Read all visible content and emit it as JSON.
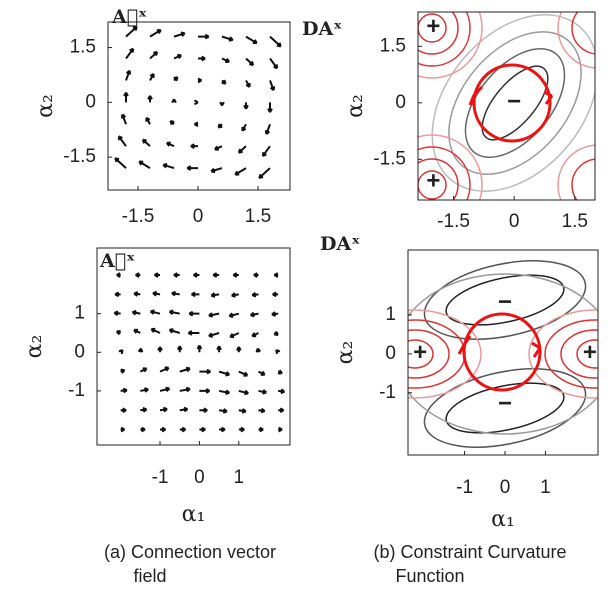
{
  "chart_data": [
    {
      "type": "quiver",
      "title": "A⃗ˣ",
      "ylabel": "α₂",
      "xlim": [
        -2.25,
        2.3
      ],
      "ylim": [
        -2.4,
        2.2
      ],
      "xticks": [
        -1.5,
        0,
        1.5
      ],
      "yticks": [
        1.5,
        0,
        -1.5
      ],
      "x": [
        -1.8,
        -1.2,
        -0.6,
        0,
        0.6,
        1.2,
        1.8
      ],
      "y": [
        1.8,
        1.2,
        0.6,
        0,
        -0.6,
        -1.2,
        -1.8
      ],
      "u": [
        [
          0.27,
          0.27,
          0.27,
          0.27,
          0.27,
          0.27,
          0.27
        ],
        [
          0.18,
          0.18,
          0.18,
          0.18,
          0.18,
          0.18,
          0.18
        ],
        [
          0.09,
          0.09,
          0.09,
          0.09,
          0.09,
          0.09,
          0.09
        ],
        [
          0,
          0,
          0,
          0,
          0,
          0,
          0
        ],
        [
          -0.09,
          -0.09,
          -0.09,
          -0.09,
          -0.09,
          -0.09,
          -0.09
        ],
        [
          -0.18,
          -0.18,
          -0.18,
          -0.18,
          -0.18,
          -0.18,
          -0.18
        ],
        [
          -0.27,
          -0.27,
          -0.27,
          -0.27,
          -0.27,
          -0.27,
          -0.27
        ]
      ],
      "v": [
        [
          0.27,
          0.18,
          0.09,
          0,
          -0.09,
          -0.18,
          -0.27
        ],
        [
          0.27,
          0.18,
          0.09,
          0,
          -0.09,
          -0.18,
          -0.27
        ],
        [
          0.27,
          0.18,
          0.09,
          0,
          -0.09,
          -0.18,
          -0.27
        ],
        [
          0.27,
          0.18,
          0.09,
          0,
          -0.09,
          -0.18,
          -0.27
        ],
        [
          0.27,
          0.18,
          0.09,
          0,
          -0.09,
          -0.18,
          -0.27
        ],
        [
          0.27,
          0.18,
          0.09,
          0,
          -0.09,
          -0.18,
          -0.27
        ],
        [
          0.27,
          0.18,
          0.09,
          0,
          -0.09,
          -0.18,
          -0.27
        ]
      ],
      "color": "#111"
    },
    {
      "type": "contour",
      "title": "DAˣ",
      "ylabel": "α₂",
      "xlim": [
        -2.38,
        2.0
      ],
      "ylim": [
        -2.58,
        2.41
      ],
      "xticks": [
        -1.5,
        0,
        1.5
      ],
      "yticks": [
        1.5,
        0,
        -1.5
      ],
      "annotations": [
        {
          "text": "+",
          "x": -2.0,
          "y": 2.0,
          "color": "#d22"
        },
        {
          "text": "+",
          "x": -2.0,
          "y": -2.1,
          "color": "#d22"
        },
        {
          "text": "−",
          "x": 0,
          "y": 0,
          "color": "#111"
        }
      ]
    },
    {
      "type": "quiver",
      "title": "A⃗ˣ",
      "ylabel": "α₂",
      "xlabel": "α₁",
      "xlim": [
        -2.6,
        2.3
      ],
      "ylim": [
        -2.4,
        2.7
      ],
      "xticks": [
        -1,
        0,
        1
      ],
      "yticks": [
        1,
        0,
        -1
      ],
      "x": [
        -2,
        -1.5,
        -1,
        -0.5,
        0,
        0.5,
        1,
        1.5,
        2
      ],
      "y": [
        2,
        1.5,
        1,
        0.5,
        0,
        -0.5,
        -1,
        -1.5,
        -2
      ],
      "u": [
        [
          -0.1,
          -0.12,
          -0.14,
          -0.15,
          -0.15,
          -0.15,
          -0.14,
          -0.12,
          -0.1
        ],
        [
          -0.14,
          -0.16,
          -0.18,
          -0.2,
          -0.2,
          -0.2,
          -0.18,
          -0.16,
          -0.14
        ],
        [
          -0.16,
          -0.2,
          -0.24,
          -0.26,
          -0.26,
          -0.26,
          -0.24,
          -0.2,
          -0.16
        ],
        [
          -0.1,
          -0.16,
          -0.22,
          -0.26,
          -0.28,
          -0.26,
          -0.22,
          -0.16,
          -0.1
        ],
        [
          0.05,
          0.02,
          0,
          0,
          0,
          0,
          0,
          -0.02,
          -0.05
        ],
        [
          0.1,
          0.16,
          0.22,
          0.26,
          0.28,
          0.26,
          0.22,
          0.16,
          0.1
        ],
        [
          0.16,
          0.2,
          0.24,
          0.26,
          0.26,
          0.26,
          0.24,
          0.2,
          0.16
        ],
        [
          0.14,
          0.16,
          0.18,
          0.2,
          0.2,
          0.2,
          0.18,
          0.16,
          0.14
        ],
        [
          0.1,
          0.12,
          0.14,
          0.15,
          0.15,
          0.15,
          0.14,
          0.12,
          0.1
        ]
      ],
      "v": [
        [
          0,
          0,
          0,
          0,
          0,
          0,
          0,
          0,
          0
        ],
        [
          0,
          0.02,
          0.03,
          0.03,
          0,
          -0.03,
          -0.03,
          -0.02,
          0
        ],
        [
          0.02,
          0.04,
          0.06,
          0.05,
          0,
          -0.05,
          -0.06,
          -0.04,
          -0.02
        ],
        [
          0.04,
          0.08,
          0.1,
          0.08,
          0,
          -0.08,
          -0.1,
          -0.08,
          -0.04
        ],
        [
          0.06,
          0.1,
          0.14,
          0.16,
          0.18,
          0.16,
          0.14,
          0.1,
          0.06
        ],
        [
          0.04,
          0.08,
          0.1,
          0.08,
          0,
          -0.08,
          -0.1,
          -0.08,
          -0.04
        ],
        [
          0.02,
          0.04,
          0.06,
          0.05,
          0,
          -0.05,
          -0.06,
          -0.04,
          -0.02
        ],
        [
          0,
          0.02,
          0.03,
          0.03,
          0,
          -0.03,
          -0.03,
          -0.02,
          0
        ],
        [
          0,
          0,
          0,
          0,
          0,
          0,
          0,
          0,
          0
        ]
      ],
      "color": "#111",
      "caption": [
        "(a) Connection vector",
        "field"
      ]
    },
    {
      "type": "contour",
      "title": "DAˣ",
      "ylabel": "α₂",
      "xlabel": "α₁",
      "xlim": [
        -2.4,
        2.3
      ],
      "ylim": [
        -2.6,
        2.67
      ],
      "xticks": [
        -1,
        0,
        1
      ],
      "yticks": [
        1,
        0,
        -1
      ],
      "annotations": [
        {
          "text": "+",
          "x": -2.1,
          "y": 0,
          "color": "#d22"
        },
        {
          "text": "+",
          "x": 2.1,
          "y": 0,
          "color": "#d22"
        },
        {
          "text": "−",
          "x": 0,
          "y": 1.3,
          "color": "#111"
        },
        {
          "text": "−",
          "x": 0,
          "y": -1.3,
          "color": "#111"
        }
      ],
      "caption": [
        "(b) Constraint Curvature",
        "Function"
      ]
    }
  ]
}
